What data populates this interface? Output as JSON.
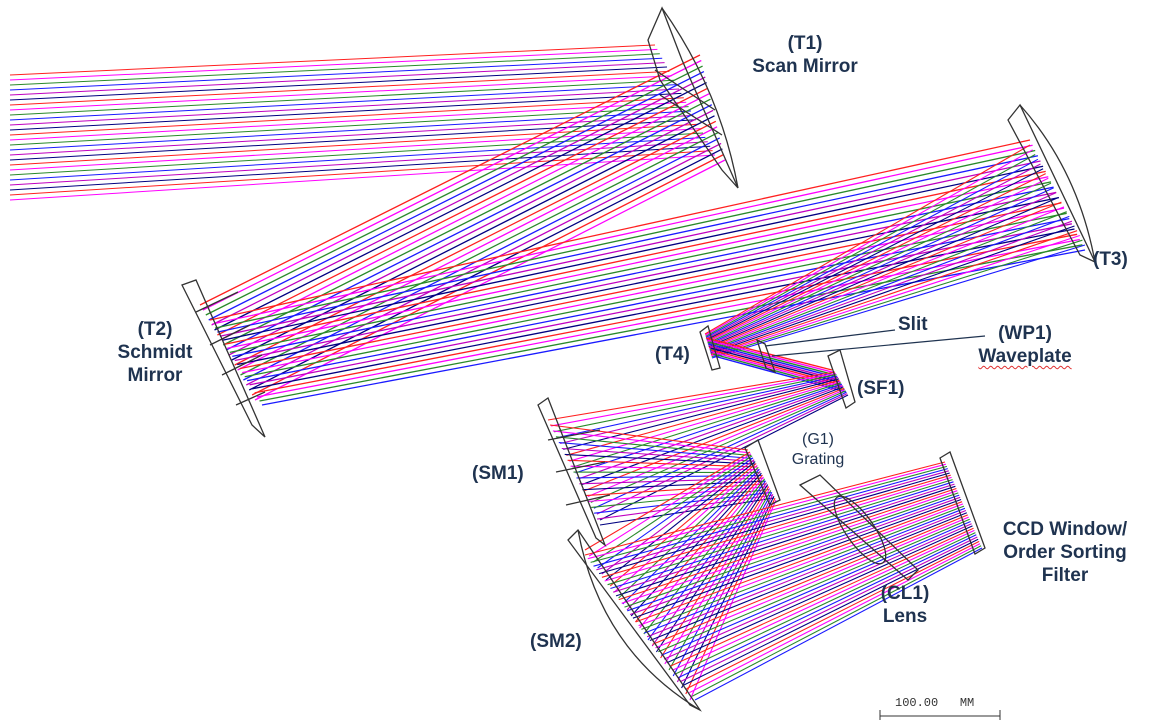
{
  "labels": {
    "t1_id": "(T1)",
    "t1_name": "Scan Mirror",
    "t2_id": "(T2)",
    "t2_name_1": "Schmidt",
    "t2_name_2": "Mirror",
    "t3_id": "(T3)",
    "t4_id": "(T4)",
    "slit": "Slit",
    "wp1_id": "(WP1)",
    "wp1_name": "Waveplate",
    "sf1_id": "(SF1)",
    "g1_id": "(G1)",
    "g1_name": "Grating",
    "sm1_id": "(SM1)",
    "sm2_id": "(SM2)",
    "cl1_id": "(CL1)",
    "cl1_name": "Lens",
    "ccd_1": "CCD Window/",
    "ccd_2": "Order Sorting",
    "ccd_3": "Filter"
  },
  "scale_bar": {
    "value": "100.00",
    "unit": "MM"
  },
  "colors": {
    "label": "#1f3350",
    "outline": "#333333",
    "rays": [
      "#ff2020",
      "#ff00ff",
      "#2a8a2a",
      "#1a1aff",
      "#c000c0",
      "#000080"
    ],
    "spellcheck_underline": "#e03030"
  }
}
